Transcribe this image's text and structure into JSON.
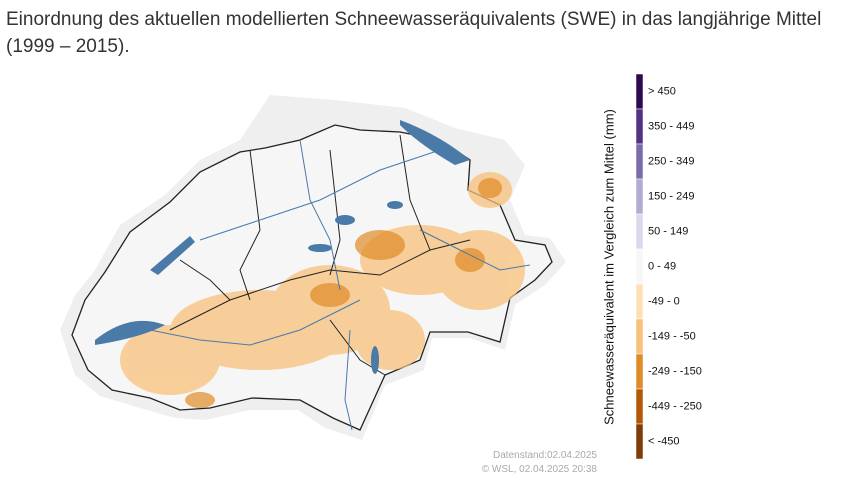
{
  "title": "Einordnung des aktuellen modellierten Schneewasseräquivalents (SWE) in das langjährige Mittel (1999 – 2015).",
  "legend": {
    "title": "Schneewasseräquivalent im Vergleich zum Mittel (mm)",
    "items": [
      {
        "label": "> 450",
        "color": "#2d0a4e"
      },
      {
        "label": "350 - 449",
        "color": "#523283"
      },
      {
        "label": "250 - 349",
        "color": "#7c6ba9"
      },
      {
        "label": "150 - 249",
        "color": "#b2abd2"
      },
      {
        "label": "50 - 149",
        "color": "#d8daeb"
      },
      {
        "label": "0 - 49",
        "color": "#f7f7f7"
      },
      {
        "label": "-49 - 0",
        "color": "#fde0b6"
      },
      {
        "label": "-149 - -50",
        "color": "#f8c07a"
      },
      {
        "label": "-249 - -150",
        "color": "#e08c26"
      },
      {
        "label": "-449 - -250",
        "color": "#b35806"
      },
      {
        "label": "< -450",
        "color": "#7f3b08"
      }
    ]
  },
  "footer": {
    "data_status": "Datenstand:02.04.2025",
    "copyright": "© WSL, 02.04.2025 20:38"
  }
}
